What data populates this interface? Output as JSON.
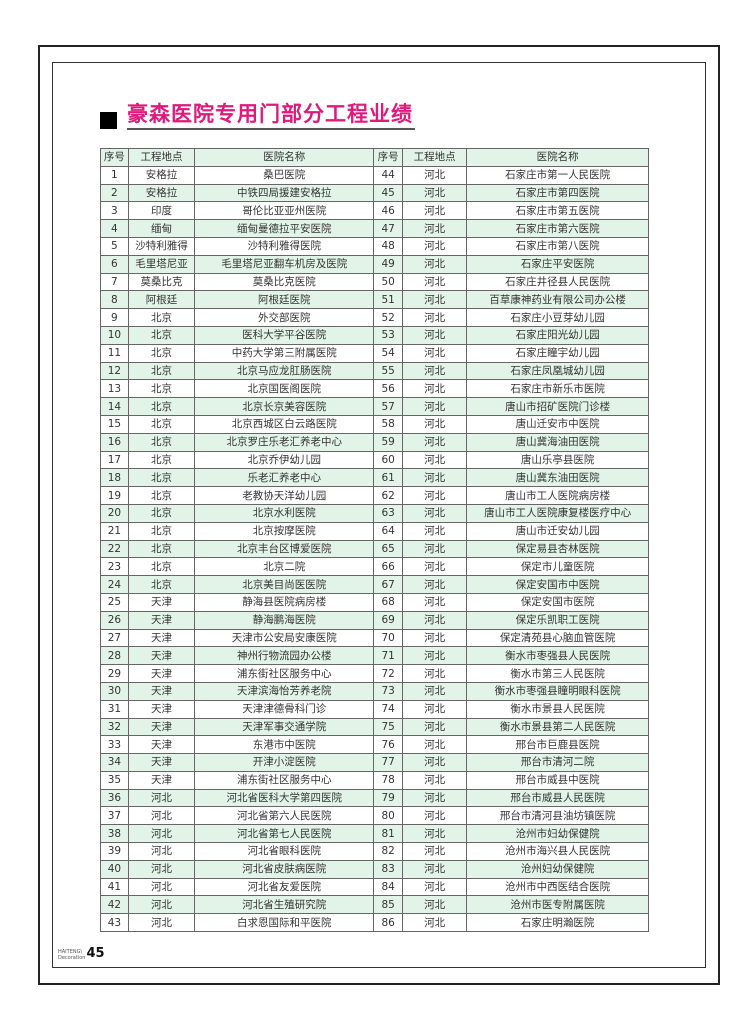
{
  "title": "豪森医院专用门部分工程业绩",
  "headers": [
    "序号",
    "工程地点",
    "医院名称",
    "序号",
    "工程地点",
    "医院名称"
  ],
  "rows": [
    [
      "1",
      "安格拉",
      "桑巴医院",
      "44",
      "河北",
      "石家庄市第一人民医院"
    ],
    [
      "2",
      "安格拉",
      "中铁四局援建安格拉",
      "45",
      "河北",
      "石家庄市第四医院"
    ],
    [
      "3",
      "印度",
      "哥伦比亚亚州医院",
      "46",
      "河北",
      "石家庄市第五医院"
    ],
    [
      "4",
      "缅甸",
      "缅甸曼德拉平安医院",
      "47",
      "河北",
      "石家庄市第六医院"
    ],
    [
      "5",
      "沙特利雅得",
      "沙特利雅得医院",
      "48",
      "河北",
      "石家庄市第八医院"
    ],
    [
      "6",
      "毛里塔尼亚",
      "毛里塔尼亚翻车机房及医院",
      "49",
      "河北",
      "石家庄平安医院"
    ],
    [
      "7",
      "莫桑比克",
      "莫桑比克医院",
      "50",
      "河北",
      "石家庄井径县人民医院"
    ],
    [
      "8",
      "阿根廷",
      "阿根廷医院",
      "51",
      "河北",
      "百草康神药业有限公司办公楼"
    ],
    [
      "9",
      "北京",
      "外交部医院",
      "52",
      "河北",
      "石家庄小豆芽幼儿园"
    ],
    [
      "10",
      "北京",
      "医科大学平谷医院",
      "53",
      "河北",
      "石家庄阳光幼儿园"
    ],
    [
      "11",
      "北京",
      "中药大学第三附属医院",
      "54",
      "河北",
      "石家庄瞳宇幼儿园"
    ],
    [
      "12",
      "北京",
      "北京马应龙肛肠医院",
      "55",
      "河北",
      "石家庄凤凰城幼儿园"
    ],
    [
      "13",
      "北京",
      "北京国医阁医院",
      "56",
      "河北",
      "石家庄市新乐市医院"
    ],
    [
      "14",
      "北京",
      "北京长京美容医院",
      "57",
      "河北",
      "唐山市招矿医院门诊楼"
    ],
    [
      "15",
      "北京",
      "北京西城区白云路医院",
      "58",
      "河北",
      "唐山迁安市中医院"
    ],
    [
      "16",
      "北京",
      "北京罗庄乐老汇养老中心",
      "59",
      "河北",
      "唐山冀海油田医院"
    ],
    [
      "17",
      "北京",
      "北京乔伊幼儿园",
      "60",
      "河北",
      "唐山乐亭县医院"
    ],
    [
      "18",
      "北京",
      "乐老汇养老中心",
      "61",
      "河北",
      "唐山冀东油田医院"
    ],
    [
      "19",
      "北京",
      "老教协天洋幼儿园",
      "62",
      "河北",
      "唐山市工人医院病房楼"
    ],
    [
      "20",
      "北京",
      "北京水利医院",
      "63",
      "河北",
      "唐山市工人医院康复楼医疗中心"
    ],
    [
      "21",
      "北京",
      "北京按摩医院",
      "64",
      "河北",
      "唐山市迁安幼儿园"
    ],
    [
      "22",
      "北京",
      "北京丰台区博爱医院",
      "65",
      "河北",
      "保定易县杏林医院"
    ],
    [
      "23",
      "北京",
      "北京二院",
      "66",
      "河北",
      "保定市儿童医院"
    ],
    [
      "24",
      "北京",
      "北京美目尚医医院",
      "67",
      "河北",
      "保定安国市中医院"
    ],
    [
      "25",
      "天津",
      "静海县医院病房楼",
      "68",
      "河北",
      "保定安国市医院"
    ],
    [
      "26",
      "天津",
      "静海鹏海医院",
      "69",
      "河北",
      "保定乐凯职工医院"
    ],
    [
      "27",
      "天津",
      "天津市公安局安康医院",
      "70",
      "河北",
      "保定清苑县心脑血管医院"
    ],
    [
      "28",
      "天津",
      "神州行物流园办公楼",
      "71",
      "河北",
      "衡水市枣强县人民医院"
    ],
    [
      "29",
      "天津",
      "浦东街社区服务中心",
      "72",
      "河北",
      "衡水市第三人民医院"
    ],
    [
      "30",
      "天津",
      "天津滨海怡芳养老院",
      "73",
      "河北",
      "衡水市枣强县瞳明眼科医院"
    ],
    [
      "31",
      "天津",
      "天津津德骨科门诊",
      "74",
      "河北",
      "衡水市景县人民医院"
    ],
    [
      "32",
      "天津",
      "天津军事交通学院",
      "75",
      "河北",
      "衡水市景县第二人民医院"
    ],
    [
      "33",
      "天津",
      "东港市中医院",
      "76",
      "河北",
      "邢台市巨鹿县医院"
    ],
    [
      "34",
      "天津",
      "开津小淀医院",
      "77",
      "河北",
      "邢台市清河二院"
    ],
    [
      "35",
      "天津",
      "浦东街社区服务中心",
      "78",
      "河北",
      "邢台市威县中医院"
    ],
    [
      "36",
      "河北",
      "河北省医科大学第四医院",
      "79",
      "河北",
      "邢台市威县人民医院"
    ],
    [
      "37",
      "河北",
      "河北省第六人民医院",
      "80",
      "河北",
      "邢台市清河县油坊镇医院"
    ],
    [
      "38",
      "河北",
      "河北省第七人民医院",
      "81",
      "河北",
      "沧州市妇幼保健院"
    ],
    [
      "39",
      "河北",
      "河北省眼科医院",
      "82",
      "河北",
      "沧州市海兴县人民医院"
    ],
    [
      "40",
      "河北",
      "河北省皮肤病医院",
      "83",
      "河北",
      "沧州妇幼保健院"
    ],
    [
      "41",
      "河北",
      "河北省友爱医院",
      "84",
      "河北",
      "沧州市中西医结合医院"
    ],
    [
      "42",
      "河北",
      "河北省生殖研究院",
      "85",
      "河北",
      "沧州市医专附属医院"
    ],
    [
      "43",
      "河北",
      "白求恩国际和平医院",
      "86",
      "河北",
      "石家庄明瀚医院"
    ]
  ],
  "footer": {
    "logo": "HAITENG Decoration",
    "page_number": "45"
  },
  "colors": {
    "title": "#e0197d",
    "row_highlight": "#e2f4e7"
  }
}
